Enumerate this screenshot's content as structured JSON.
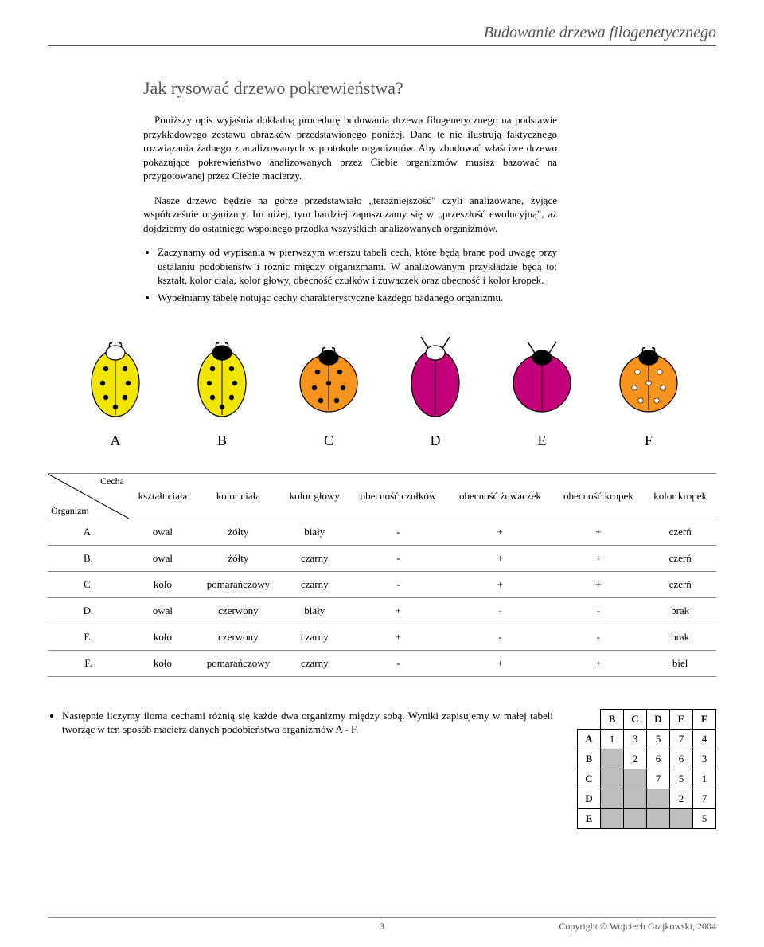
{
  "header": {
    "title": "Budowanie drzewa filogenetycznego"
  },
  "section": {
    "subtitle": "Jak rysować drzewo pokrewieństwa?",
    "p1": "Poniższy opis wyjaśnia dokładną procedurę budowania drzewa filogenetycznego na podstawie przykładowego zestawu obrazków przedstawionego poniżej. Dane te nie ilustrują faktycznego rozwiązania żadnego z analizowanych w protokole organizmów. Aby zbudować właściwe drzewo pokazujące pokrewieństwo analizowanych przez Ciebie organizmów musisz bazować na przygotowanej przez Ciebie macierzy.",
    "p2": "Nasze drzewo będzie na górze przedstawiało „teraźniejszość\" czyli analizowane, żyjące współcześnie organizmy. Im niżej, tym bardziej zapuszczamy się w „przeszłość ewolucyjną\", aż dojdziemy do ostatniego wspólnego przodka wszystkich analizowanych organizmów.",
    "b1": "Zaczynamy od wypisania w pierwszym wierszu tabeli cech, które będą brane pod uwagę przy ustalaniu podobieństw i różnic między organizmami. W analizowanym przykładzie będą to: kształt, kolor ciała, kolor głowy, obecność czułków i żuwaczek oraz obecność i kolor kropek.",
    "b2": "Wypełniamy tabelę notując cechy charakterystyczne każdego badanego organizmu."
  },
  "bugs": {
    "labels": [
      "A",
      "B",
      "C",
      "D",
      "E",
      "F"
    ],
    "specs": [
      {
        "shape": "oval",
        "body": "#f2e500",
        "head": "#ffffff",
        "antennae": false,
        "mandibles": true,
        "dots": true,
        "dot_color": "#000000"
      },
      {
        "shape": "oval",
        "body": "#f2e500",
        "head": "#000000",
        "antennae": false,
        "mandibles": true,
        "dots": true,
        "dot_color": "#000000"
      },
      {
        "shape": "circle",
        "body": "#f7941e",
        "head": "#000000",
        "antennae": false,
        "mandibles": true,
        "dots": true,
        "dot_color": "#000000"
      },
      {
        "shape": "oval",
        "body": "#c3007a",
        "head": "#ffffff",
        "antennae": true,
        "mandibles": false,
        "dots": false,
        "dot_color": "none"
      },
      {
        "shape": "circle",
        "body": "#c3007a",
        "head": "#000000",
        "antennae": true,
        "mandibles": false,
        "dots": false,
        "dot_color": "none"
      },
      {
        "shape": "circle",
        "body": "#f7941e",
        "head": "#000000",
        "antennae": false,
        "mandibles": true,
        "dots": true,
        "dot_color": "#ffffff"
      }
    ]
  },
  "feat_table": {
    "corner_top": "Cecha",
    "corner_bottom": "Organizm",
    "columns": [
      "kształt ciała",
      "kolor ciała",
      "kolor głowy",
      "obecność czułków",
      "obecność żuwaczek",
      "obecność kropek",
      "kolor kropek"
    ],
    "rows": [
      {
        "org": "A.",
        "cells": [
          "owal",
          "żółty",
          "biały",
          "-",
          "+",
          "+",
          "czerń"
        ]
      },
      {
        "org": "B.",
        "cells": [
          "owal",
          "żółty",
          "czarny",
          "-",
          "+",
          "+",
          "czerń"
        ]
      },
      {
        "org": "C.",
        "cells": [
          "koło",
          "pomarańczowy",
          "czarny",
          "-",
          "+",
          "+",
          "czerń"
        ]
      },
      {
        "org": "D.",
        "cells": [
          "owal",
          "czerwony",
          "biały",
          "+",
          "-",
          "-",
          "brak"
        ]
      },
      {
        "org": "E.",
        "cells": [
          "koło",
          "czerwony",
          "czarny",
          "+",
          "-",
          "-",
          "brak"
        ]
      },
      {
        "org": "F.",
        "cells": [
          "koło",
          "pomarańczowy",
          "czarny",
          "-",
          "+",
          "+",
          "biel"
        ]
      }
    ]
  },
  "lower": {
    "bullet": "Następnie liczymy iloma cechami różnią się każde dwa organizmy między sobą. Wyniki zapisujemy w małej tabeli tworząc w ten sposób macierz danych podobieństwa organizmów A - F."
  },
  "matrix": {
    "cols": [
      "B",
      "C",
      "D",
      "E",
      "F"
    ],
    "rows": [
      {
        "label": "A",
        "cells": [
          "1",
          "3",
          "5",
          "7",
          "4"
        ]
      },
      {
        "label": "B",
        "cells": [
          "",
          "2",
          "6",
          "6",
          "3"
        ]
      },
      {
        "label": "C",
        "cells": [
          "",
          "",
          "7",
          "5",
          "1"
        ]
      },
      {
        "label": "D",
        "cells": [
          "",
          "",
          "",
          "2",
          "7"
        ]
      },
      {
        "label": "E",
        "cells": [
          "",
          "",
          "",
          "",
          "5"
        ]
      }
    ]
  },
  "footer": {
    "page": "3",
    "copyright": "Copyright © Wojciech Grajkowski, 2004"
  },
  "colors": {
    "stroke": "#000000",
    "outline_gray": "#888888",
    "matrix_gray": "#bdbdbd"
  }
}
